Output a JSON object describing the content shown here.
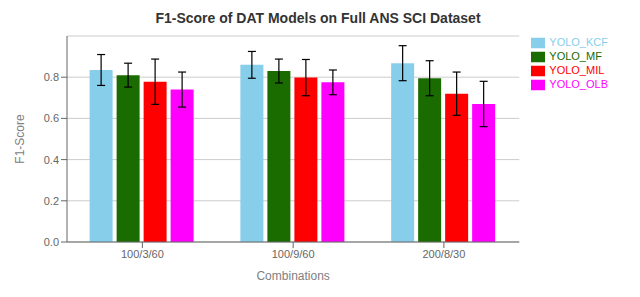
{
  "chart_data": {
    "type": "bar",
    "title": "F1-Score of DAT Models on Full ANS SCI Dataset",
    "xlabel": "Combinations",
    "ylabel": "F1-Score",
    "categories": [
      "100/3/60",
      "100/9/60",
      "200/8/30"
    ],
    "series": [
      {
        "name": "YOLO_KCF",
        "color": "#87CEEB",
        "values": [
          0.835,
          0.86,
          0.868
        ],
        "errors": [
          0.075,
          0.065,
          0.085
        ]
      },
      {
        "name": "YOLO_MF",
        "color": "#1a6b00",
        "values": [
          0.81,
          0.83,
          0.795
        ],
        "errors": [
          0.058,
          0.058,
          0.085
        ]
      },
      {
        "name": "YOLO_MIL",
        "color": "#ff0000",
        "values": [
          0.778,
          0.798,
          0.72
        ],
        "errors": [
          0.11,
          0.088,
          0.105
        ]
      },
      {
        "name": "YOLO_OLB",
        "color": "#ff00ff",
        "values": [
          0.74,
          0.775,
          0.67
        ],
        "errors": [
          0.085,
          0.06,
          0.11
        ]
      }
    ],
    "ylim": [
      0.0,
      1.0
    ],
    "yticks": [
      {
        "value": 0.0,
        "label": "0.0"
      },
      0.2,
      0.4,
      0.6,
      0.8
    ],
    "grid": true,
    "legend": "right"
  }
}
